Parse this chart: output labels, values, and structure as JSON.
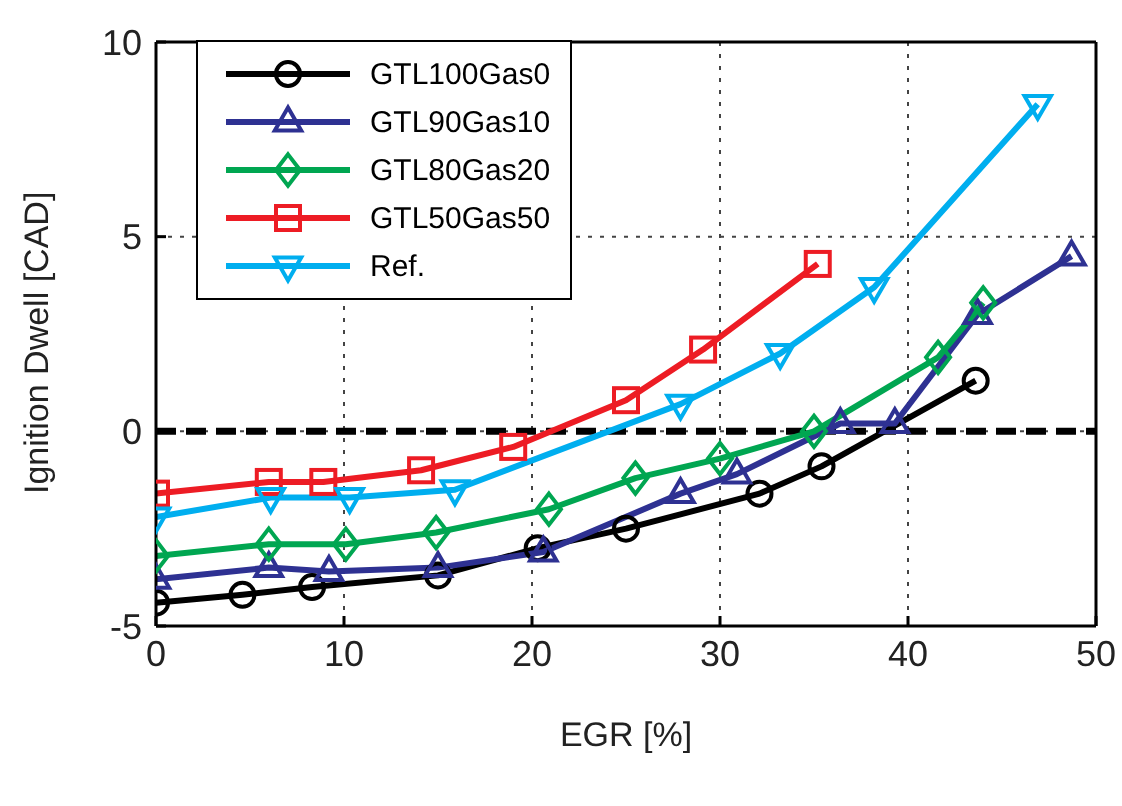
{
  "chart_data": {
    "type": "line",
    "xlabel": "EGR [%]",
    "ylabel": "Ignition Dwell [CAD]",
    "xlim": [
      0,
      50
    ],
    "ylim": [
      -5,
      10
    ],
    "xticks": [
      0,
      10,
      20,
      30,
      40,
      50
    ],
    "yticks": [
      -5,
      0,
      5,
      10
    ],
    "grid": true,
    "legend": "top left",
    "line_style": "solid",
    "ref_lines": [
      {
        "axis": "y",
        "value": 0,
        "color": "#000000",
        "line_style": "dashed"
      }
    ],
    "series": [
      {
        "name": "GTL100Gas0",
        "color": "#000000",
        "marker": "circle",
        "x": [
          0,
          4.6,
          8.3,
          15.0,
          20.3,
          25.0,
          32.1,
          35.4,
          43.6
        ],
        "values": [
          -4.4,
          -4.2,
          -4.0,
          -3.7,
          -3.0,
          -2.5,
          -1.6,
          -0.9,
          1.3
        ]
      },
      {
        "name": "GTL90Gas10",
        "color": "#2e3192",
        "marker": "triangle",
        "x": [
          0,
          6.0,
          9.2,
          15.0,
          20.6,
          27.9,
          30.9,
          36.4,
          39.3,
          43.7,
          48.7
        ],
        "values": [
          -3.8,
          -3.5,
          -3.6,
          -3.5,
          -3.1,
          -1.6,
          -1.1,
          0.2,
          0.2,
          3.0,
          4.5
        ]
      },
      {
        "name": "GTL80Gas20",
        "color": "#00a651",
        "marker": "diamond",
        "x": [
          0,
          6.0,
          10.1,
          14.9,
          20.9,
          25.5,
          30.0,
          35.0,
          41.6,
          44.0
        ],
        "values": [
          -3.2,
          -2.9,
          -2.9,
          -2.6,
          -2.0,
          -1.2,
          -0.7,
          0,
          1.9,
          3.3
        ]
      },
      {
        "name": "GTL50Gas50",
        "color": "#ed1c24",
        "marker": "square",
        "x": [
          0,
          6.0,
          8.9,
          14.1,
          19.0,
          25.0,
          29.1,
          35.2
        ],
        "values": [
          -1.6,
          -1.3,
          -1.3,
          -1.0,
          -0.4,
          0.8,
          2.1,
          4.3
        ]
      },
      {
        "name": "Ref.",
        "color": "#00aeef",
        "marker": "triangle-down",
        "x": [
          0,
          6.1,
          10.3,
          15.9,
          27.9,
          33.2,
          38.2,
          46.9
        ],
        "values": [
          -2.2,
          -1.7,
          -1.7,
          -1.5,
          0.7,
          2.0,
          3.7,
          8.4
        ]
      }
    ]
  }
}
